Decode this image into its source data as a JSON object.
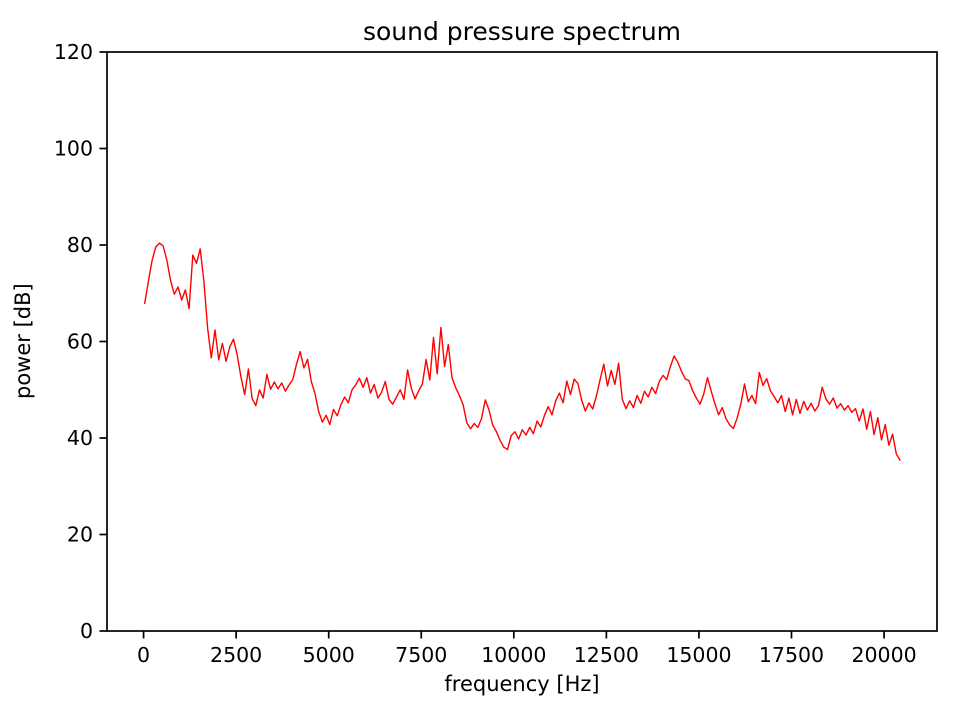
{
  "chart_data": {
    "type": "line",
    "title": "sound pressure spectrum",
    "xlabel": "frequency [Hz]",
    "ylabel": "power [dB]",
    "xlim": [
      -988,
      21430
    ],
    "ylim": [
      0,
      120
    ],
    "xticks": [
      0,
      2500,
      5000,
      7500,
      10000,
      12500,
      15000,
      17500,
      20000
    ],
    "yticks": [
      0,
      20,
      40,
      60,
      80,
      100,
      120
    ],
    "grid": false,
    "legend": null,
    "line_color": "#ff0000",
    "background_color": "#ffffff",
    "spine_color": "#000000",
    "series": [
      {
        "name": "sound pressure spectrum",
        "points": [
          [
            30,
            67.9
          ],
          [
            130,
            72.5
          ],
          [
            230,
            76.8
          ],
          [
            330,
            79.6
          ],
          [
            430,
            80.4
          ],
          [
            530,
            79.8
          ],
          [
            630,
            76.8
          ],
          [
            730,
            72.6
          ],
          [
            830,
            69.8
          ],
          [
            930,
            71.3
          ],
          [
            1030,
            68.6
          ],
          [
            1130,
            70.7
          ],
          [
            1230,
            66.8
          ],
          [
            1330,
            77.9
          ],
          [
            1430,
            76.2
          ],
          [
            1530,
            79.2
          ],
          [
            1630,
            72.5
          ],
          [
            1730,
            62.8
          ],
          [
            1830,
            56.6
          ],
          [
            1930,
            62.4
          ],
          [
            2030,
            56.2
          ],
          [
            2130,
            59.6
          ],
          [
            2230,
            55.9
          ],
          [
            2330,
            58.9
          ],
          [
            2430,
            60.5
          ],
          [
            2530,
            57.2
          ],
          [
            2630,
            52.6
          ],
          [
            2730,
            49.0
          ],
          [
            2830,
            54.3
          ],
          [
            2930,
            48.2
          ],
          [
            3030,
            46.7
          ],
          [
            3130,
            50.0
          ],
          [
            3230,
            48.3
          ],
          [
            3330,
            53.2
          ],
          [
            3430,
            50.1
          ],
          [
            3530,
            51.6
          ],
          [
            3630,
            50.2
          ],
          [
            3730,
            51.4
          ],
          [
            3830,
            49.7
          ],
          [
            3930,
            51.0
          ],
          [
            4030,
            52.1
          ],
          [
            4130,
            55.3
          ],
          [
            4230,
            57.9
          ],
          [
            4330,
            54.5
          ],
          [
            4430,
            56.3
          ],
          [
            4530,
            51.7
          ],
          [
            4630,
            49.2
          ],
          [
            4730,
            45.5
          ],
          [
            4830,
            43.3
          ],
          [
            4930,
            44.7
          ],
          [
            5030,
            42.8
          ],
          [
            5130,
            45.9
          ],
          [
            5230,
            44.6
          ],
          [
            5330,
            46.9
          ],
          [
            5430,
            48.5
          ],
          [
            5530,
            47.3
          ],
          [
            5630,
            50.0
          ],
          [
            5730,
            51.0
          ],
          [
            5830,
            52.4
          ],
          [
            5930,
            50.5
          ],
          [
            6030,
            52.5
          ],
          [
            6130,
            49.3
          ],
          [
            6230,
            51.1
          ],
          [
            6330,
            48.3
          ],
          [
            6430,
            49.5
          ],
          [
            6530,
            51.7
          ],
          [
            6630,
            48.0
          ],
          [
            6730,
            47.0
          ],
          [
            6830,
            48.5
          ],
          [
            6930,
            50.0
          ],
          [
            7030,
            48.0
          ],
          [
            7130,
            54.1
          ],
          [
            7230,
            50.3
          ],
          [
            7330,
            48.1
          ],
          [
            7430,
            49.8
          ],
          [
            7530,
            51.2
          ],
          [
            7630,
            56.3
          ],
          [
            7730,
            52.0
          ],
          [
            7830,
            60.8
          ],
          [
            7930,
            53.3
          ],
          [
            8030,
            62.9
          ],
          [
            8130,
            54.8
          ],
          [
            8230,
            59.4
          ],
          [
            8330,
            52.5
          ],
          [
            8430,
            50.4
          ],
          [
            8530,
            48.8
          ],
          [
            8630,
            46.9
          ],
          [
            8730,
            43.2
          ],
          [
            8830,
            41.9
          ],
          [
            8930,
            43.0
          ],
          [
            9030,
            42.2
          ],
          [
            9130,
            44.1
          ],
          [
            9230,
            47.9
          ],
          [
            9330,
            45.8
          ],
          [
            9430,
            42.7
          ],
          [
            9530,
            41.3
          ],
          [
            9630,
            39.5
          ],
          [
            9730,
            38.1
          ],
          [
            9830,
            37.6
          ],
          [
            9930,
            40.5
          ],
          [
            10030,
            41.3
          ],
          [
            10130,
            39.8
          ],
          [
            10230,
            41.7
          ],
          [
            10330,
            40.6
          ],
          [
            10430,
            42.2
          ],
          [
            10530,
            40.9
          ],
          [
            10630,
            43.5
          ],
          [
            10730,
            42.3
          ],
          [
            10830,
            44.7
          ],
          [
            10930,
            46.5
          ],
          [
            11030,
            44.8
          ],
          [
            11130,
            47.7
          ],
          [
            11230,
            49.3
          ],
          [
            11330,
            47.3
          ],
          [
            11430,
            51.8
          ],
          [
            11530,
            49.0
          ],
          [
            11630,
            52.2
          ],
          [
            11730,
            51.3
          ],
          [
            11830,
            47.9
          ],
          [
            11930,
            45.6
          ],
          [
            12030,
            47.3
          ],
          [
            12130,
            46.0
          ],
          [
            12230,
            48.7
          ],
          [
            12330,
            52.1
          ],
          [
            12430,
            55.3
          ],
          [
            12530,
            50.8
          ],
          [
            12630,
            54.0
          ],
          [
            12730,
            51.1
          ],
          [
            12830,
            55.5
          ],
          [
            12930,
            48.0
          ],
          [
            13030,
            46.1
          ],
          [
            13130,
            47.7
          ],
          [
            13230,
            46.3
          ],
          [
            13330,
            48.8
          ],
          [
            13430,
            47.2
          ],
          [
            13530,
            49.7
          ],
          [
            13630,
            48.5
          ],
          [
            13730,
            50.5
          ],
          [
            13830,
            49.2
          ],
          [
            13930,
            51.7
          ],
          [
            14030,
            53.0
          ],
          [
            14130,
            52.1
          ],
          [
            14230,
            54.8
          ],
          [
            14330,
            57.0
          ],
          [
            14430,
            55.7
          ],
          [
            14530,
            53.8
          ],
          [
            14630,
            52.3
          ],
          [
            14730,
            51.9
          ],
          [
            14830,
            49.8
          ],
          [
            14930,
            48.3
          ],
          [
            15030,
            47.0
          ],
          [
            15130,
            49.1
          ],
          [
            15230,
            52.5
          ],
          [
            15330,
            49.7
          ],
          [
            15430,
            47.1
          ],
          [
            15530,
            44.8
          ],
          [
            15630,
            46.3
          ],
          [
            15730,
            44.0
          ],
          [
            15830,
            42.7
          ],
          [
            15930,
            42.0
          ],
          [
            16030,
            44.1
          ],
          [
            16130,
            47.0
          ],
          [
            16230,
            51.2
          ],
          [
            16330,
            47.5
          ],
          [
            16430,
            48.8
          ],
          [
            16530,
            47.1
          ],
          [
            16630,
            53.6
          ],
          [
            16730,
            50.9
          ],
          [
            16830,
            52.3
          ],
          [
            16930,
            49.8
          ],
          [
            17030,
            48.6
          ],
          [
            17130,
            47.3
          ],
          [
            17230,
            48.8
          ],
          [
            17330,
            45.5
          ],
          [
            17430,
            48.3
          ],
          [
            17530,
            44.8
          ],
          [
            17630,
            48.0
          ],
          [
            17730,
            45.1
          ],
          [
            17830,
            47.6
          ],
          [
            17930,
            45.8
          ],
          [
            18030,
            47.2
          ],
          [
            18130,
            45.6
          ],
          [
            18230,
            46.7
          ],
          [
            18330,
            50.5
          ],
          [
            18430,
            48.1
          ],
          [
            18530,
            47.0
          ],
          [
            18630,
            48.3
          ],
          [
            18730,
            46.2
          ],
          [
            18830,
            47.1
          ],
          [
            18930,
            45.8
          ],
          [
            19030,
            46.7
          ],
          [
            19130,
            45.3
          ],
          [
            19230,
            46.1
          ],
          [
            19330,
            43.5
          ],
          [
            19430,
            46.0
          ],
          [
            19530,
            41.8
          ],
          [
            19630,
            45.5
          ],
          [
            19730,
            40.7
          ],
          [
            19830,
            44.2
          ],
          [
            19930,
            39.6
          ],
          [
            20030,
            42.8
          ],
          [
            20130,
            38.5
          ],
          [
            20230,
            40.8
          ],
          [
            20330,
            36.7
          ],
          [
            20430,
            35.4
          ]
        ]
      }
    ]
  }
}
